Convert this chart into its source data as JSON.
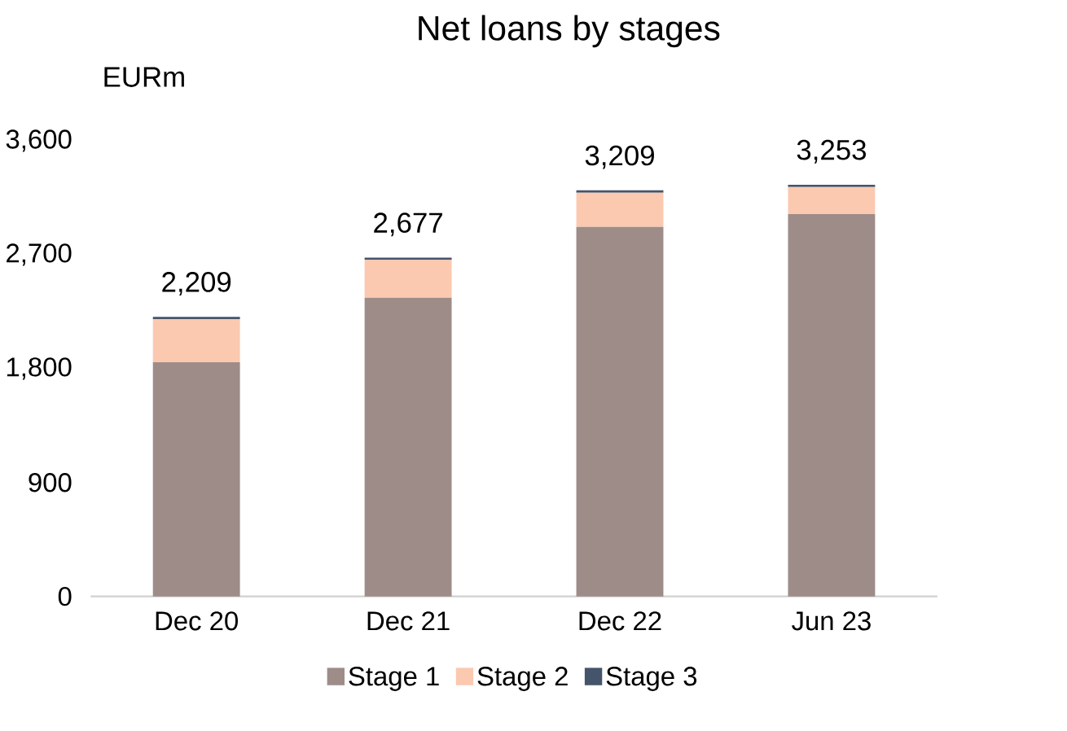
{
  "chart_data": {
    "type": "bar",
    "title": "Net loans by stages",
    "ylabel": "EURm",
    "categories": [
      "Dec 20",
      "Dec 21",
      "Dec 22",
      "Jun 23"
    ],
    "series": [
      {
        "name": "Stage 1",
        "color": "#9e8c89",
        "values": [
          1850,
          2360,
          2920,
          3020
        ]
      },
      {
        "name": "Stage 2",
        "color": "#fbc9b0",
        "values": [
          340,
          300,
          270,
          215
        ]
      },
      {
        "name": "Stage 3",
        "color": "#44546a",
        "values": [
          19,
          17,
          19,
          18
        ]
      }
    ],
    "stacked": true,
    "ylim": [
      0,
      3600
    ],
    "yticks": [
      0,
      {
        "value": 900,
        "label": "900"
      },
      {
        "value": 1800,
        "label": "1,800"
      },
      {
        "value": 2700,
        "label": "2,700"
      },
      {
        "value": 3600,
        "label": "3,600"
      }
    ],
    "totals": [
      "2,209",
      "2,677",
      "3,209",
      "3,253"
    ],
    "legend": "bottom"
  }
}
